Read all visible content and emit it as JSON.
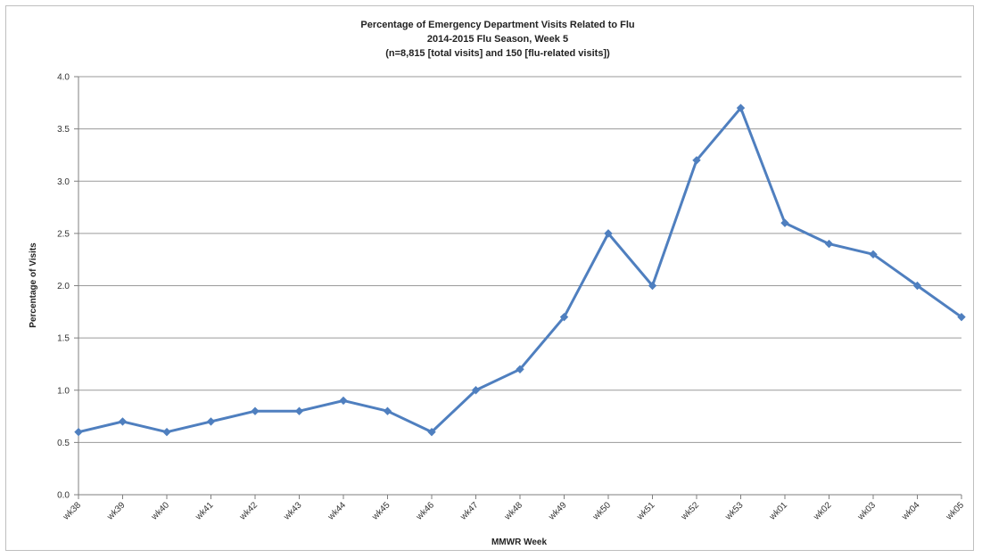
{
  "chart_data": {
    "type": "line",
    "title": [
      "Percentage of Emergency Department Visits Related to Flu",
      "2014-2015  Flu Season, Week 5",
      "(n=8,815  [total visits] and 150 [flu-related visits])"
    ],
    "xlabel": "MMWR  Week",
    "ylabel": "Percentage of Visits",
    "categories": [
      "wk38",
      "wk39",
      "wk40",
      "wk41",
      "wk42",
      "wk43",
      "wk44",
      "wk45",
      "wk46",
      "wk47",
      "wk48",
      "wk49",
      "wk50",
      "wk51",
      "wk52",
      "wk53",
      "wk01",
      "wk02",
      "wk03",
      "wk04",
      "wk05"
    ],
    "series": [
      {
        "values": [
          0.6,
          0.7,
          0.6,
          0.7,
          0.8,
          0.8,
          0.9,
          0.8,
          0.6,
          1.0,
          1.2,
          1.7,
          2.5,
          2.0,
          3.2,
          3.7,
          2.6,
          2.4,
          2.3,
          2.0,
          1.7
        ],
        "color": "#4f7fbf"
      }
    ],
    "ylim": [
      0,
      4.0
    ],
    "yticks": [
      "0.0",
      "0.5",
      "1.0",
      "1.5",
      "2.0",
      "2.5",
      "3.0",
      "3.5",
      "4.0"
    ],
    "grid": true,
    "legend": "none"
  }
}
